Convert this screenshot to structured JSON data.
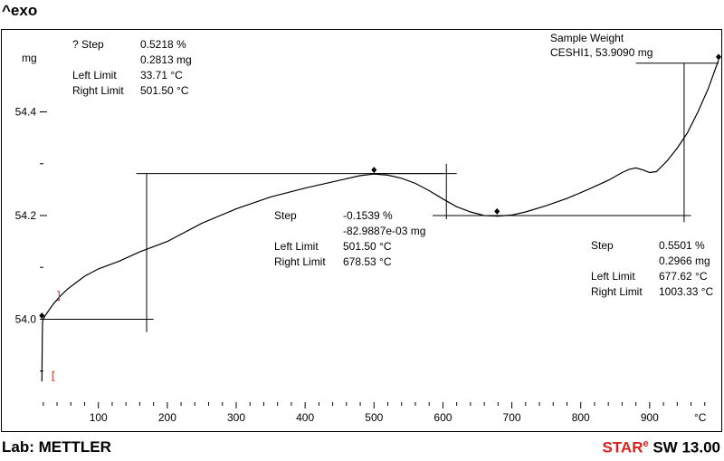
{
  "header": {
    "exo_label": "^exo"
  },
  "footer": {
    "lab": "Lab: METTLER",
    "software": {
      "star_s": "S",
      "star_tar": "TA",
      "star_r": "R",
      "star_sup": "e",
      "rest": "SW 13.00"
    }
  },
  "colors": {
    "curve": "#000000",
    "limit_marker": "#e0201c",
    "brand_red": "#e0201c"
  },
  "chart_data": {
    "type": "line",
    "ylabel": "mg",
    "xunit": "°C",
    "xticks": [
      100,
      200,
      300,
      400,
      500,
      600,
      700,
      800,
      900
    ],
    "yticks": [
      "54.0",
      "54.2",
      "54.4"
    ],
    "ytick_values": [
      54.0,
      54.2,
      54.4
    ],
    "xlim": [
      15,
      1000
    ],
    "ylim": [
      53.84,
      54.56
    ],
    "series": [
      {
        "values": [
          [
            18,
            53.88
          ],
          [
            18.5,
            53.96
          ],
          [
            19,
            53.995
          ],
          [
            20,
            54.0
          ],
          [
            22,
            54.005
          ],
          [
            27,
            54.015
          ],
          [
            35,
            54.03
          ],
          [
            45,
            54.045
          ],
          [
            55,
            54.058
          ],
          [
            65,
            54.068
          ],
          [
            80,
            54.083
          ],
          [
            100,
            54.097
          ],
          [
            130,
            54.112
          ],
          [
            160,
            54.13
          ],
          [
            200,
            54.15
          ],
          [
            250,
            54.185
          ],
          [
            300,
            54.213
          ],
          [
            350,
            54.236
          ],
          [
            400,
            54.253
          ],
          [
            450,
            54.268
          ],
          [
            480,
            54.277
          ],
          [
            500,
            54.28
          ],
          [
            520,
            54.278
          ],
          [
            540,
            54.272
          ],
          [
            560,
            54.262
          ],
          [
            580,
            54.248
          ],
          [
            600,
            54.232
          ],
          [
            620,
            54.217
          ],
          [
            640,
            54.207
          ],
          [
            660,
            54.2
          ],
          [
            680,
            54.199
          ],
          [
            700,
            54.201
          ],
          [
            720,
            54.207
          ],
          [
            750,
            54.219
          ],
          [
            780,
            54.233
          ],
          [
            810,
            54.25
          ],
          [
            840,
            54.268
          ],
          [
            860,
            54.283
          ],
          [
            870,
            54.289
          ],
          [
            880,
            54.292
          ],
          [
            890,
            54.288
          ],
          [
            900,
            54.283
          ],
          [
            910,
            54.285
          ],
          [
            925,
            54.305
          ],
          [
            940,
            54.33
          ],
          [
            955,
            54.36
          ],
          [
            970,
            54.4
          ],
          [
            985,
            54.445
          ],
          [
            1000,
            54.5
          ]
        ]
      }
    ],
    "evaluations": [
      {
        "step_label": "? Step",
        "step_percent": "0.5218 %",
        "step_mg": "0.2813 mg",
        "left_label": "Left Limit",
        "left_value": "33.71 °C",
        "right_label": "Right Limit",
        "right_value": "501.50 °C",
        "left_baseline": {
          "x1": 15,
          "x2": 180,
          "y": 54.0
        },
        "right_baseline": {
          "x1": 155,
          "x2": 600,
          "y": 54.281
        },
        "vertical": {
          "x": 170,
          "y1": 53.975,
          "y2": 54.281
        },
        "limit_points": [
          [
            33.71,
            53.89
          ],
          [
            43,
            54.045
          ]
        ],
        "anchor_points": [
          [
            18,
            54.007
          ],
          [
            500,
            54.288
          ]
        ]
      },
      {
        "step_label": "Step",
        "step_percent": "-0.1539 %",
        "step_mg": "-82.9887e-03 mg",
        "left_label": "Left Limit",
        "left_value": "501.50 °C",
        "right_label": "Right Limit",
        "right_value": "678.53 °C",
        "left_baseline": {
          "x1": 495,
          "x2": 620,
          "y": 54.281
        },
        "right_baseline": {
          "x1": 585,
          "x2": 960,
          "y": 54.2
        },
        "vertical": {
          "x": 605,
          "y1": 54.193,
          "y2": 54.3
        },
        "anchor_points": [
          [
            678.5,
            54.208
          ]
        ]
      },
      {
        "step_label": "Step",
        "step_percent": "0.5501 %",
        "step_mg": "0.2966 mg",
        "left_label": "Left Limit",
        "left_value": "677.62 °C",
        "right_label": "Right Limit",
        "right_value": "1003.33 °C",
        "left_baseline": {
          "x1": 880,
          "x2": 1000,
          "y": 54.494
        },
        "vertical": {
          "x": 950,
          "y1": 54.187,
          "y2": 54.494
        },
        "anchor_points": [
          [
            1000,
            54.506
          ]
        ]
      }
    ],
    "sample": {
      "title": "Sample Weight",
      "name": "CESHI1, 53.9090 mg"
    }
  }
}
